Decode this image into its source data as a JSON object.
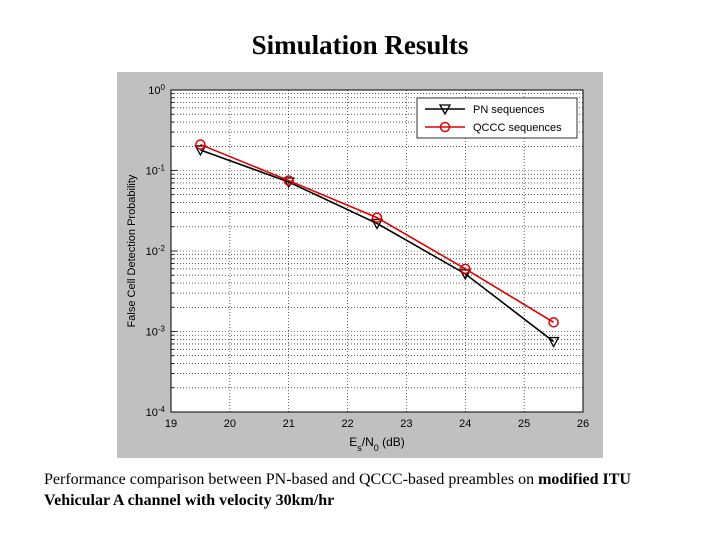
{
  "slide_title": "Simulation Results",
  "caption": {
    "part1": "Performance comparison between PN-based and QCCC-based preambles on ",
    "part2": "modified ITU Vehicular A channel with velocity 30km/hr"
  },
  "chart_data": {
    "type": "line",
    "xlabel_main": "E",
    "xlabel_sub1": "s",
    "xlabel_mid": "/N",
    "xlabel_sub2": "0",
    "xlabel_unit": " (dB)",
    "ylabel": "False Cell Detection Probability",
    "xlim": [
      19,
      26
    ],
    "ylim": [
      0.0001,
      1
    ],
    "yscale": "log",
    "x_ticks": [
      "19",
      "20",
      "21",
      "22",
      "23",
      "24",
      "25",
      "26"
    ],
    "y_tick_exponents": [
      "0",
      "-1",
      "-2",
      "-3",
      "-4"
    ],
    "grid": true,
    "legend_position": "top-right",
    "series": [
      {
        "name": "PN sequences",
        "color": "#000000",
        "marker": "triangle-down",
        "x": [
          19.5,
          21,
          22.5,
          24,
          25.5
        ],
        "y": [
          0.18,
          0.072,
          0.022,
          0.0052,
          0.00075
        ]
      },
      {
        "name": "QCCC sequences",
        "color": "#e00000",
        "marker": "circle",
        "x": [
          19.5,
          21,
          22.5,
          24,
          25.5
        ],
        "y": [
          0.21,
          0.075,
          0.026,
          0.006,
          0.0013
        ]
      }
    ]
  }
}
